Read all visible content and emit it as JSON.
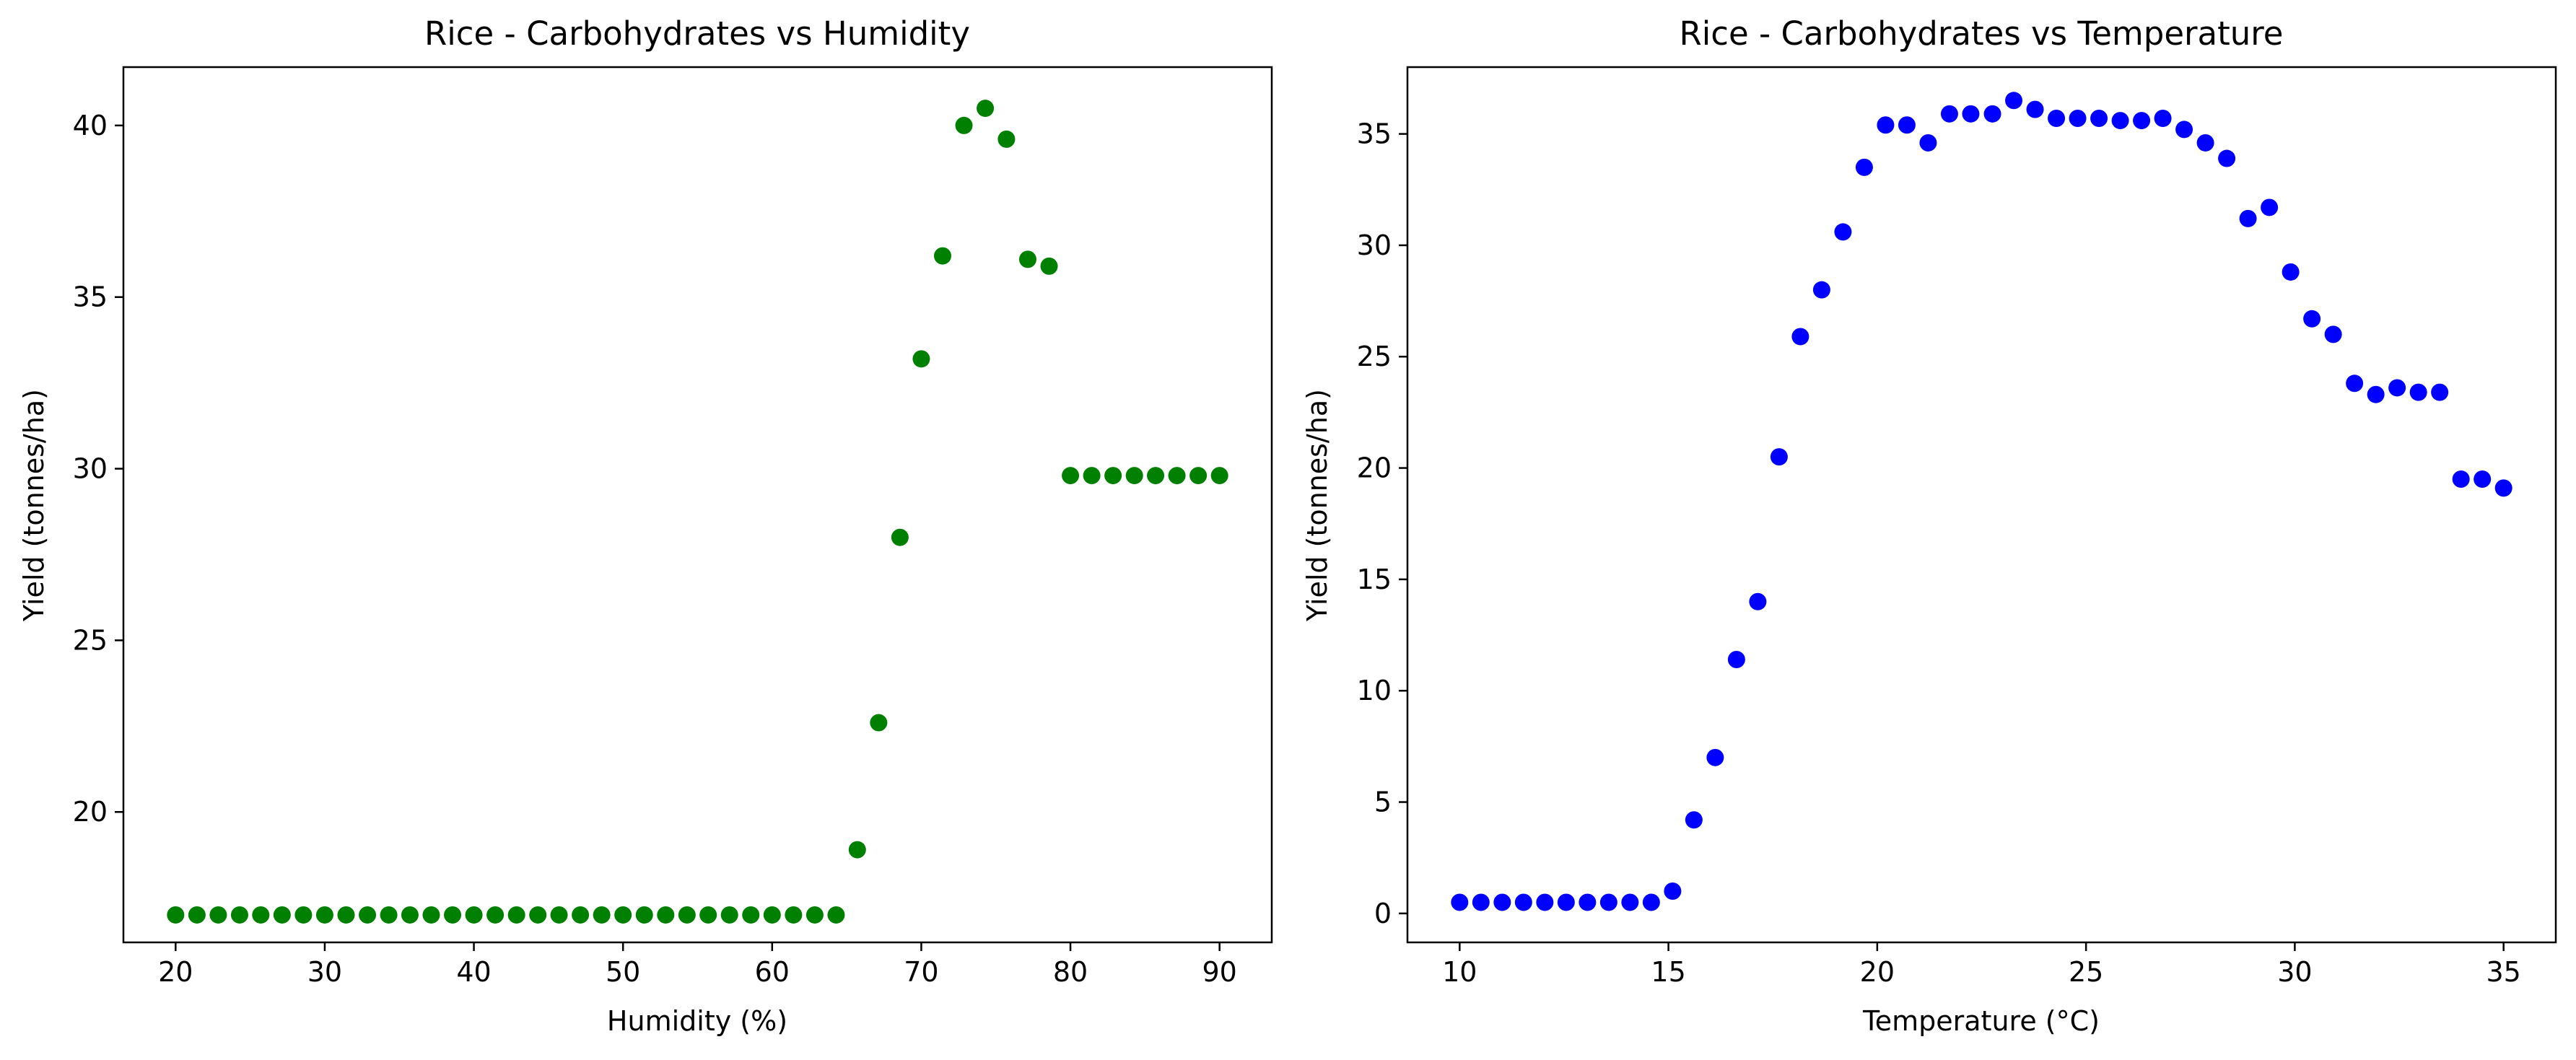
{
  "chart_data": [
    {
      "type": "scatter",
      "title": "Rice - Carbohydrates vs Humidity",
      "xlabel": "Humidity (%)",
      "ylabel": "Yield (tonnes/ha)",
      "xlim": [
        16.5,
        93.5
      ],
      "ylim": [
        16.2,
        41.7
      ],
      "xticks": [
        20,
        30,
        40,
        50,
        60,
        70,
        80,
        90
      ],
      "yticks": [
        20,
        25,
        30,
        35,
        40
      ],
      "grid": false,
      "color": "#008000",
      "x": [
        20.0,
        21.43,
        22.86,
        24.29,
        25.71,
        27.14,
        28.57,
        30.0,
        31.43,
        32.86,
        34.29,
        35.71,
        37.14,
        38.57,
        40.0,
        41.43,
        42.86,
        44.29,
        45.71,
        47.14,
        48.57,
        50.0,
        51.43,
        52.86,
        54.29,
        55.71,
        57.14,
        58.57,
        60.0,
        61.43,
        62.86,
        64.29,
        65.71,
        67.14,
        68.57,
        70.0,
        71.43,
        72.86,
        74.29,
        75.71,
        77.14,
        78.57,
        80.0,
        81.43,
        82.86,
        84.29,
        85.71,
        87.14,
        88.57,
        90.0
      ],
      "y": [
        17.0,
        17.0,
        17.0,
        17.0,
        17.0,
        17.0,
        17.0,
        17.0,
        17.0,
        17.0,
        17.0,
        17.0,
        17.0,
        17.0,
        17.0,
        17.0,
        17.0,
        17.0,
        17.0,
        17.0,
        17.0,
        17.0,
        17.0,
        17.0,
        17.0,
        17.0,
        17.0,
        17.0,
        17.0,
        17.0,
        17.0,
        17.0,
        18.9,
        22.6,
        28.0,
        33.2,
        36.2,
        40.0,
        40.5,
        39.6,
        36.1,
        35.9,
        29.8,
        29.8,
        29.8,
        29.8,
        29.8,
        29.8,
        29.8,
        29.8
      ]
    },
    {
      "type": "scatter",
      "title": "Rice - Carbohydrates vs Temperature",
      "xlabel": "Temperature (°C)",
      "ylabel": "Yield (tonnes/ha)",
      "xlim": [
        8.75,
        36.25
      ],
      "ylim": [
        -1.3,
        38.0
      ],
      "xticks": [
        10,
        15,
        20,
        25,
        30,
        35
      ],
      "yticks": [
        0,
        5,
        10,
        15,
        20,
        25,
        30,
        35
      ],
      "grid": false,
      "color": "#0000ff",
      "x": [
        10.0,
        10.51,
        11.02,
        11.53,
        12.04,
        12.55,
        13.06,
        13.57,
        14.08,
        14.59,
        15.1,
        15.61,
        16.12,
        16.63,
        17.14,
        17.65,
        18.16,
        18.67,
        19.18,
        19.69,
        20.2,
        20.71,
        21.22,
        21.73,
        22.24,
        22.76,
        23.27,
        23.78,
        24.29,
        24.8,
        25.31,
        25.82,
        26.33,
        26.84,
        27.35,
        27.86,
        28.37,
        28.88,
        29.39,
        29.9,
        30.41,
        30.92,
        31.43,
        31.94,
        32.45,
        32.96,
        33.47,
        33.98,
        34.49,
        35.0
      ],
      "y": [
        0.5,
        0.5,
        0.5,
        0.5,
        0.5,
        0.5,
        0.5,
        0.5,
        0.5,
        0.5,
        1.0,
        4.2,
        7.0,
        11.4,
        14.0,
        20.5,
        25.9,
        28.0,
        30.6,
        33.5,
        35.4,
        35.4,
        34.6,
        35.9,
        35.9,
        35.9,
        36.5,
        36.1,
        35.7,
        35.7,
        35.7,
        35.6,
        35.6,
        35.7,
        35.2,
        34.6,
        33.9,
        31.2,
        31.7,
        28.8,
        26.7,
        26.0,
        23.8,
        23.3,
        23.6,
        23.4,
        23.4,
        19.5,
        19.5,
        19.1
      ]
    }
  ]
}
